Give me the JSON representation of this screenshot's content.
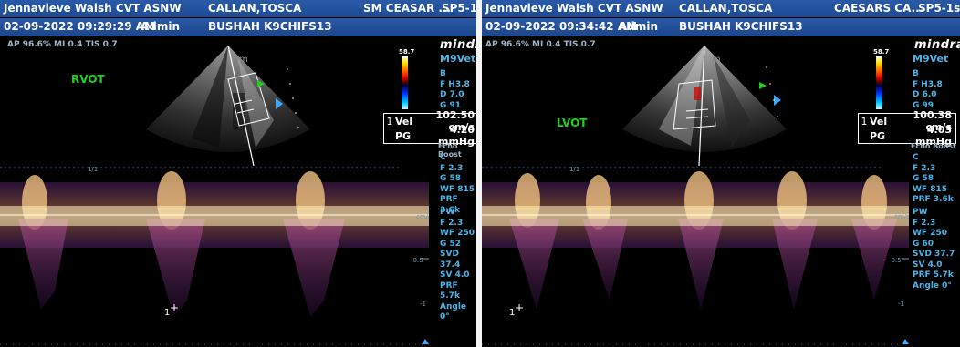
{
  "left": {
    "header": {
      "institution": "Jennavieve Walsh CVT ASNW",
      "patient_name": "CALLAN,TOSCA",
      "clinician": "SM CEASAR ...",
      "probe": "SP5-1s",
      "datetime": "02-09-2022 09:29:29 AM",
      "operator": "Admin",
      "patient_id": "BUSHAH K9CHIFS13"
    },
    "acoustic": "AP 96.6%  MI 0.4  TIS 0.7",
    "view_label": "RVOT",
    "colorbar_max": "58.7",
    "brand": "mindray",
    "model": "M9Vet",
    "b_params": [
      "B",
      "F H3.8",
      "D 7.0",
      "G 91"
    ],
    "measurement": {
      "index": "1",
      "rows": [
        {
          "label": "Vel",
          "value": "102.50 cm/s"
        },
        {
          "label": "PG",
          "value": "4.20 mmHg"
        }
      ]
    },
    "echo_boost": "Echo Boost",
    "c_params": [
      "C",
      "F 2.3",
      "G 58",
      "WF 815",
      "PRF 3.6k"
    ],
    "pw_params": [
      "PW",
      "F 2.3",
      "WF 250",
      "G 52",
      "SVD 37.4",
      "SV 4.0",
      "PRF 5.7k",
      "Angle 0°"
    ],
    "scale_label": "1/1",
    "baseline_label": "cm/s",
    "tick_label": "-0.5",
    "tick_label_2": "-1",
    "cursor_label": "1"
  },
  "right": {
    "header": {
      "institution": "Jennavieve Walsh CVT ASNW",
      "patient_name": "CALLAN,TOSCA",
      "clinician": "CAESARS CA...",
      "probe": "SP5-1s",
      "datetime": "02-09-2022 09:34:42 AM",
      "operator": "Admin",
      "patient_id": "BUSHAH K9CHIFS13"
    },
    "acoustic": "AP 96.6%  MI 0.4  TIS 0.7",
    "view_label": "LVOT",
    "colorbar_max": "58.7",
    "brand": "mindray",
    "model": "M9Vet",
    "b_params": [
      "B",
      "F H3.8",
      "D 6.0",
      "G 99"
    ],
    "measurement": {
      "index": "1",
      "rows": [
        {
          "label": "Vel",
          "value": "100.38 cm/s"
        },
        {
          "label": "PG",
          "value": "4.03 mmHg"
        }
      ]
    },
    "echo_boost": "Echo Boost",
    "c_params": [
      "C",
      "F 2.3",
      "G 58",
      "WF 815",
      "PRF 3.6k"
    ],
    "pw_params": [
      "PW",
      "F 2.3",
      "WF 250",
      "G 60",
      "SVD 37.7",
      "SV 4.0",
      "PRF 5.7k",
      "Angle 0°"
    ],
    "scale_label": "1/1",
    "baseline_label": "cm/s",
    "tick_label": "-0.5",
    "tick_label_2": "-1",
    "cursor_label": "1"
  },
  "colors": {
    "header_bg": "#2060a8",
    "view_label": "#1ed11e",
    "param_text": "#4fb3e6",
    "doppler_core": "#fff3c0",
    "doppler_mid": "#e08a40",
    "doppler_edge": "#6a2a8a"
  }
}
